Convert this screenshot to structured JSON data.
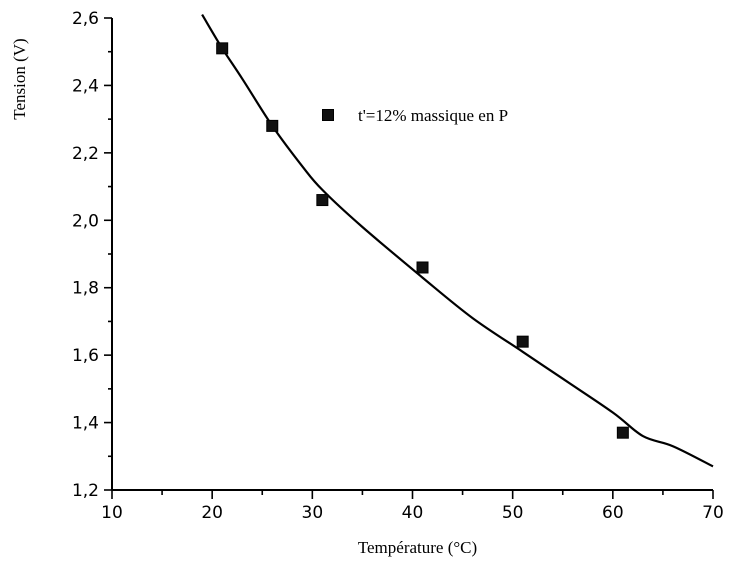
{
  "chart_data": {
    "type": "scatter",
    "xlabel": "Température (°C)",
    "ylabel": "Tension (V)",
    "xlim": [
      10,
      70
    ],
    "ylim": [
      1.2,
      2.6
    ],
    "x_ticks": [
      10,
      20,
      30,
      40,
      50,
      60,
      70
    ],
    "x_tick_labels": [
      "10",
      "20",
      "30",
      "40",
      "50",
      "60",
      "70"
    ],
    "y_ticks": [
      1.2,
      1.4,
      1.6,
      1.8,
      2.0,
      2.2,
      2.4,
      2.6
    ],
    "y_tick_labels": [
      "1,2",
      "1,4",
      "1,6",
      "1,8",
      "2,0",
      "2,2",
      "2,4",
      "2,6"
    ],
    "grid": false,
    "legend_position": "top-right",
    "series": [
      {
        "name": "t'=12% massique en P",
        "marker": "square",
        "x": [
          21,
          26,
          31,
          41,
          51,
          61
        ],
        "y": [
          2.51,
          2.28,
          2.06,
          1.86,
          1.64,
          1.37
        ]
      }
    ],
    "curve": {
      "x": [
        19,
        21,
        23,
        26,
        29,
        31,
        35,
        41,
        46,
        51,
        55,
        60,
        63,
        66,
        70
      ],
      "y": [
        2.61,
        2.51,
        2.42,
        2.28,
        2.16,
        2.09,
        1.98,
        1.83,
        1.71,
        1.61,
        1.53,
        1.43,
        1.36,
        1.33,
        1.27
      ]
    },
    "colors": {
      "axis": "#000000",
      "marker": "#111111",
      "curve": "#000000"
    }
  }
}
